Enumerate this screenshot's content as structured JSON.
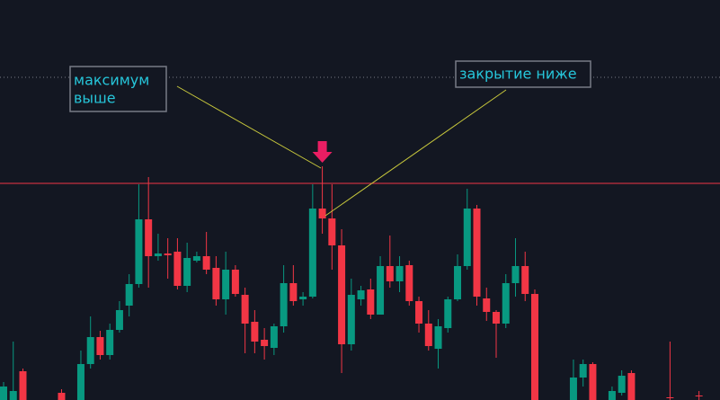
{
  "chart_data": {
    "type": "candlestick",
    "up_color": "#089981",
    "down_color": "#f23645",
    "ylim": [
      0,
      445
    ],
    "open": [
      0,
      0,
      32,
      null,
      null,
      null,
      8,
      null,
      0,
      40,
      70,
      50,
      78,
      105,
      129,
      201,
      160,
      163,
      165,
      127,
      155,
      160,
      147,
      112,
      145,
      117,
      87,
      67,
      58,
      82,
      130,
      112,
      115,
      213,
      202,
      172,
      62,
      112,
      123,
      95,
      149,
      132,
      150,
      110,
      85,
      57,
      80,
      112,
      149,
      213,
      113,
      98,
      85,
      130,
      149,
      118,
      null,
      null,
      null,
      0,
      25,
      40,
      null,
      0,
      8,
      30,
      null,
      null,
      null,
      3,
      null,
      null,
      5
    ],
    "high": [
      20,
      65,
      35,
      null,
      null,
      null,
      12,
      null,
      55,
      93,
      77,
      85,
      110,
      140,
      240,
      248,
      185,
      180,
      180,
      175,
      165,
      187,
      160,
      165,
      150,
      125,
      100,
      80,
      85,
      150,
      150,
      120,
      240,
      260,
      240,
      190,
      135,
      127,
      135,
      160,
      183,
      160,
      155,
      115,
      100,
      90,
      115,
      162,
      235,
      217,
      125,
      100,
      140,
      180,
      165,
      123,
      null,
      null,
      null,
      45,
      45,
      42,
      null,
      15,
      33,
      33,
      null,
      null,
      null,
      65,
      null,
      null,
      10
    ],
    "low": [
      0,
      0,
      0,
      null,
      null,
      null,
      0,
      null,
      0,
      35,
      45,
      45,
      75,
      93,
      125,
      125,
      155,
      135,
      123,
      120,
      153,
      140,
      105,
      95,
      115,
      52,
      52,
      45,
      50,
      75,
      105,
      105,
      113,
      185,
      145,
      30,
      55,
      105,
      90,
      95,
      125,
      120,
      105,
      75,
      55,
      35,
      75,
      110,
      145,
      105,
      88,
      47,
      80,
      115,
      110,
      0,
      null,
      null,
      null,
      0,
      15,
      0,
      null,
      0,
      5,
      0,
      null,
      null,
      null,
      0,
      null,
      null,
      0
    ],
    "close": [
      15,
      10,
      0,
      null,
      null,
      null,
      0,
      null,
      40,
      70,
      50,
      78,
      100,
      129,
      201,
      160,
      163,
      161,
      127,
      158,
      160,
      145,
      112,
      145,
      118,
      85,
      65,
      60,
      82,
      130,
      110,
      115,
      213,
      202,
      172,
      62,
      117,
      122,
      95,
      149,
      132,
      149,
      110,
      85,
      60,
      82,
      112,
      149,
      213,
      115,
      98,
      85,
      130,
      149,
      118,
      0,
      null,
      null,
      null,
      25,
      40,
      0,
      null,
      10,
      27,
      0,
      null,
      null,
      null,
      2,
      null,
      null,
      4
    ],
    "levels": [
      {
        "value": 241,
        "color": "#f23645",
        "style": "solid"
      },
      {
        "value": 359,
        "color": "#787b86",
        "style": "dotted"
      }
    ],
    "signal_index": 33,
    "annotations": [
      {
        "lines": [
          "максимум",
          "выше"
        ]
      },
      {
        "lines": [
          "закрытие ниже"
        ]
      }
    ]
  }
}
